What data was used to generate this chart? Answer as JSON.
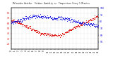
{
  "title": "Milwaukee Weather  Outdoor Humidity vs. Temperature Every 5 Minutes",
  "bg_color": "#ffffff",
  "grid_color": "#aaaaaa",
  "humidity_color": "#0000dd",
  "temp_color": "#dd0000",
  "humidity_ylim": [
    40,
    100
  ],
  "temp_ylim": [
    10,
    90
  ],
  "n_points": 288,
  "humidity_yticks": [
    50,
    60,
    70,
    80,
    90,
    100
  ],
  "temp_yticks": [
    20,
    30,
    40,
    50,
    60,
    70,
    80
  ],
  "humidity_yticklabels": [
    "50",
    "60",
    "70",
    "80",
    "90",
    "100"
  ],
  "temp_yticklabels": [
    "20",
    "30",
    "40",
    "50",
    "60",
    "70",
    "80"
  ]
}
